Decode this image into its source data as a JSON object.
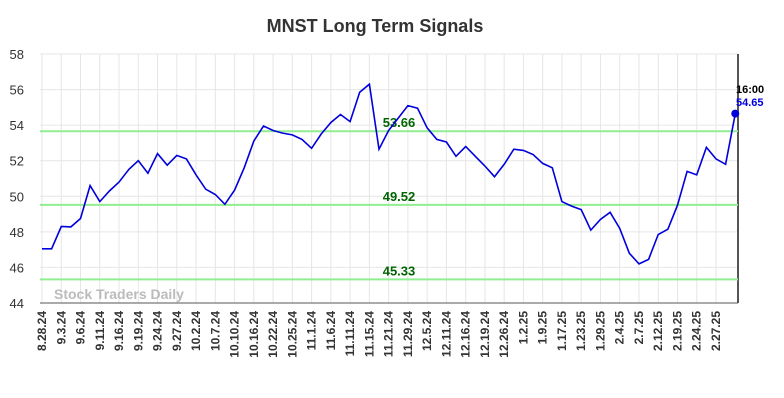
{
  "chart_data": {
    "type": "line",
    "title": "MNST Long Term Signals",
    "categories": [
      "8.28.24",
      null,
      "9.3.24",
      null,
      "9.6.24",
      null,
      "9.11.24",
      null,
      "9.16.24",
      null,
      "9.19.24",
      null,
      "9.24.24",
      null,
      "9.27.24",
      null,
      "10.2.24",
      null,
      "10.7.24",
      null,
      "10.10.24",
      null,
      "10.16.24",
      null,
      "10.22.24",
      null,
      "10.25.24",
      null,
      "11.1.24",
      null,
      "11.6.24",
      null,
      "11.11.24",
      null,
      "11.15.24",
      null,
      "11.21.24",
      null,
      "11.29.24",
      null,
      "12.5.24",
      null,
      "12.11.24",
      null,
      "12.16.24",
      null,
      "12.19.24",
      null,
      "12.26.24",
      null,
      "1.2.25",
      null,
      "1.9.25",
      null,
      "1.17.25",
      null,
      "1.23.25",
      null,
      "1.29.25",
      null,
      "2.4.25",
      null,
      "2.7.25",
      null,
      "2.12.25",
      null,
      "2.19.25",
      null,
      "2.24.25",
      null,
      "2.27.25",
      null,
      null
    ],
    "values": [
      47.05,
      47.05,
      48.3,
      48.28,
      48.75,
      50.6,
      49.7,
      50.3,
      50.8,
      51.5,
      52.0,
      51.3,
      52.4,
      51.75,
      52.3,
      52.1,
      51.2,
      50.4,
      50.1,
      49.55,
      50.35,
      51.6,
      53.1,
      53.95,
      53.7,
      53.55,
      53.45,
      53.2,
      52.7,
      53.5,
      54.15,
      54.6,
      54.2,
      55.85,
      56.3,
      52.65,
      53.7,
      54.4,
      55.1,
      54.95,
      53.85,
      53.2,
      53.05,
      52.25,
      52.8,
      52.25,
      51.7,
      51.1,
      51.8,
      52.65,
      52.58,
      52.35,
      51.85,
      51.6,
      49.7,
      49.45,
      49.25,
      48.1,
      48.7,
      49.1,
      48.2,
      46.8,
      46.2,
      46.45,
      47.85,
      48.15,
      49.5,
      51.4,
      51.2,
      52.75,
      52.1,
      51.8,
      54.65
    ],
    "color": "#0000dd",
    "hlines": [
      53.66,
      49.52,
      45.33
    ],
    "hline_color": "#90ee90",
    "hline_label_color": "#006400",
    "last_time": "16:00",
    "watermark": "Stock Traders Daily",
    "ylim": [
      44,
      58
    ],
    "yticks": [
      44,
      46,
      48,
      50,
      52,
      54,
      56,
      58
    ],
    "grid": true
  }
}
